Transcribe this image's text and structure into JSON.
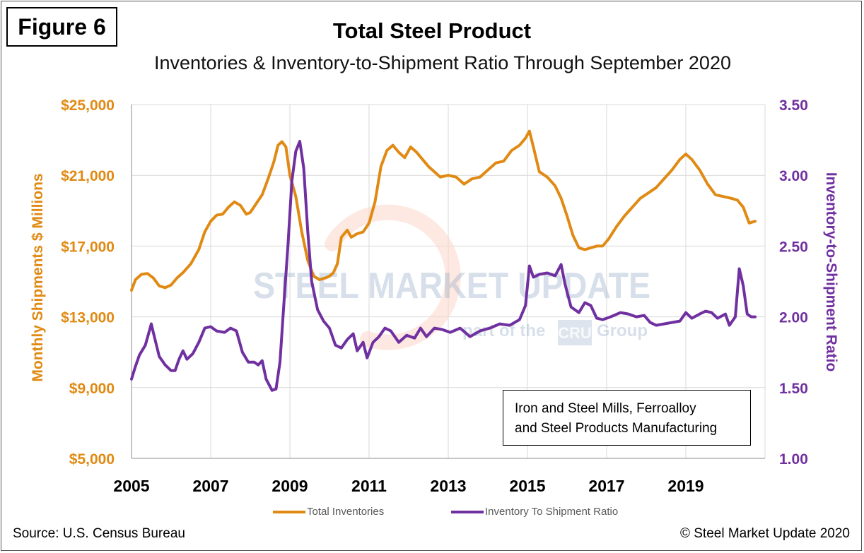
{
  "figure_label": "Figure 6",
  "source": "Source: U.S. Census Bureau",
  "copyright": "© Steel Market Update 2020",
  "annotation": {
    "line1": "Iron and Steel Mills, Ferroalloy",
    "line2": "and Steel Products Manufacturing"
  },
  "watermark": {
    "brand": "STEEL MARKET UPDATE",
    "tagline_prefix": "part of the",
    "tagline_cru": "CRU",
    "tagline_suffix": "Group"
  },
  "colors": {
    "inventories": "#e08a14",
    "ratio": "#7030a0",
    "grid": "#d9d9d9"
  },
  "chart_data": {
    "type": "line",
    "title": "Total Steel Product",
    "subtitle": "Inventories & Inventory-to-Shipment Ratio Through September 2020",
    "ylabel_left": "Monthly Shipments $ Millions",
    "ylabel_right": "Inventory-to-Shipment Ratio",
    "ylim_left": [
      5000,
      25000
    ],
    "ylim_right": [
      1.0,
      3.5
    ],
    "xlim": [
      2005,
      2021
    ],
    "x_ticks": [
      2005,
      2007,
      2009,
      2011,
      2013,
      2015,
      2017,
      2019
    ],
    "x_tick_labels": [
      "2005",
      "2007",
      "2009",
      "2011",
      "2013",
      "2015",
      "2017",
      "2019"
    ],
    "y_left_tick_values": [
      5000,
      9000,
      13000,
      17000,
      21000,
      25000
    ],
    "y_left_tick_labels": [
      "$5,000",
      "$9,000",
      "$13,000",
      "$17,000",
      "$21,000",
      "$25,000"
    ],
    "y_right_tick_values": [
      1.0,
      1.5,
      2.0,
      2.5,
      3.0,
      3.5
    ],
    "y_right_tick_labels": [
      "1.00",
      "1.50",
      "2.00",
      "2.50",
      "3.00",
      "3.50"
    ],
    "legend_position": "bottom",
    "grid": true,
    "series": [
      {
        "name": "Total Inventories",
        "axis": "left",
        "points": [
          [
            2005.0,
            14500
          ],
          [
            2005.1,
            15100
          ],
          [
            2005.25,
            15400
          ],
          [
            2005.4,
            15450
          ],
          [
            2005.55,
            15200
          ],
          [
            2005.7,
            14750
          ],
          [
            2005.85,
            14650
          ],
          [
            2006.0,
            14800
          ],
          [
            2006.15,
            15200
          ],
          [
            2006.3,
            15500
          ],
          [
            2006.5,
            16000
          ],
          [
            2006.7,
            16800
          ],
          [
            2006.85,
            17800
          ],
          [
            2007.0,
            18400
          ],
          [
            2007.15,
            18750
          ],
          [
            2007.3,
            18800
          ],
          [
            2007.45,
            19200
          ],
          [
            2007.6,
            19500
          ],
          [
            2007.75,
            19300
          ],
          [
            2007.9,
            18800
          ],
          [
            2008.0,
            18900
          ],
          [
            2008.15,
            19400
          ],
          [
            2008.3,
            19900
          ],
          [
            2008.45,
            20800
          ],
          [
            2008.6,
            21800
          ],
          [
            2008.7,
            22700
          ],
          [
            2008.8,
            22900
          ],
          [
            2008.9,
            22600
          ],
          [
            2009.0,
            21000
          ],
          [
            2009.15,
            19800
          ],
          [
            2009.3,
            17800
          ],
          [
            2009.45,
            16200
          ],
          [
            2009.6,
            15300
          ],
          [
            2009.75,
            15100
          ],
          [
            2009.9,
            15200
          ],
          [
            2010.0,
            15300
          ],
          [
            2010.1,
            15500
          ],
          [
            2010.2,
            16000
          ],
          [
            2010.3,
            17500
          ],
          [
            2010.45,
            17900
          ],
          [
            2010.55,
            17500
          ],
          [
            2010.7,
            17700
          ],
          [
            2010.85,
            17800
          ],
          [
            2011.0,
            18300
          ],
          [
            2011.15,
            19500
          ],
          [
            2011.3,
            21500
          ],
          [
            2011.45,
            22400
          ],
          [
            2011.6,
            22700
          ],
          [
            2011.75,
            22300
          ],
          [
            2011.9,
            22000
          ],
          [
            2012.05,
            22600
          ],
          [
            2012.2,
            22300
          ],
          [
            2012.35,
            21900
          ],
          [
            2012.5,
            21500
          ],
          [
            2012.65,
            21200
          ],
          [
            2012.8,
            20900
          ],
          [
            2013.0,
            21000
          ],
          [
            2013.2,
            20900
          ],
          [
            2013.4,
            20500
          ],
          [
            2013.6,
            20800
          ],
          [
            2013.8,
            20900
          ],
          [
            2014.0,
            21300
          ],
          [
            2014.2,
            21700
          ],
          [
            2014.4,
            21800
          ],
          [
            2014.6,
            22400
          ],
          [
            2014.8,
            22700
          ],
          [
            2014.95,
            23100
          ],
          [
            2015.05,
            23500
          ],
          [
            2015.15,
            22600
          ],
          [
            2015.3,
            21200
          ],
          [
            2015.5,
            20900
          ],
          [
            2015.7,
            20400
          ],
          [
            2015.85,
            19700
          ],
          [
            2016.0,
            18700
          ],
          [
            2016.15,
            17600
          ],
          [
            2016.3,
            16900
          ],
          [
            2016.45,
            16800
          ],
          [
            2016.6,
            16900
          ],
          [
            2016.75,
            17000
          ],
          [
            2016.9,
            17000
          ],
          [
            2017.05,
            17400
          ],
          [
            2017.25,
            18100
          ],
          [
            2017.45,
            18700
          ],
          [
            2017.65,
            19200
          ],
          [
            2017.85,
            19700
          ],
          [
            2018.05,
            20000
          ],
          [
            2018.25,
            20300
          ],
          [
            2018.45,
            20800
          ],
          [
            2018.65,
            21300
          ],
          [
            2018.85,
            21900
          ],
          [
            2019.0,
            22200
          ],
          [
            2019.15,
            21900
          ],
          [
            2019.35,
            21300
          ],
          [
            2019.55,
            20500
          ],
          [
            2019.75,
            19900
          ],
          [
            2019.95,
            19800
          ],
          [
            2020.15,
            19700
          ],
          [
            2020.3,
            19600
          ],
          [
            2020.45,
            19200
          ],
          [
            2020.6,
            18300
          ],
          [
            2020.75,
            18400
          ]
        ]
      },
      {
        "name": "Inventory To Shipment Ratio",
        "axis": "right",
        "points": [
          [
            2005.0,
            1.56
          ],
          [
            2005.1,
            1.65
          ],
          [
            2005.2,
            1.73
          ],
          [
            2005.35,
            1.8
          ],
          [
            2005.5,
            1.95
          ],
          [
            2005.55,
            1.89
          ],
          [
            2005.7,
            1.72
          ],
          [
            2005.85,
            1.66
          ],
          [
            2006.0,
            1.62
          ],
          [
            2006.1,
            1.62
          ],
          [
            2006.2,
            1.7
          ],
          [
            2006.3,
            1.76
          ],
          [
            2006.4,
            1.7
          ],
          [
            2006.55,
            1.74
          ],
          [
            2006.7,
            1.82
          ],
          [
            2006.85,
            1.92
          ],
          [
            2007.0,
            1.93
          ],
          [
            2007.15,
            1.9
          ],
          [
            2007.35,
            1.89
          ],
          [
            2007.5,
            1.92
          ],
          [
            2007.65,
            1.9
          ],
          [
            2007.8,
            1.75
          ],
          [
            2007.95,
            1.68
          ],
          [
            2008.1,
            1.68
          ],
          [
            2008.2,
            1.66
          ],
          [
            2008.3,
            1.69
          ],
          [
            2008.4,
            1.56
          ],
          [
            2008.55,
            1.48
          ],
          [
            2008.65,
            1.49
          ],
          [
            2008.75,
            1.68
          ],
          [
            2008.85,
            2.1
          ],
          [
            2008.95,
            2.5
          ],
          [
            2009.05,
            2.96
          ],
          [
            2009.15,
            3.17
          ],
          [
            2009.25,
            3.24
          ],
          [
            2009.35,
            3.05
          ],
          [
            2009.45,
            2.61
          ],
          [
            2009.55,
            2.25
          ],
          [
            2009.7,
            2.05
          ],
          [
            2009.85,
            1.97
          ],
          [
            2010.0,
            1.92
          ],
          [
            2010.15,
            1.8
          ],
          [
            2010.3,
            1.78
          ],
          [
            2010.45,
            1.84
          ],
          [
            2010.6,
            1.88
          ],
          [
            2010.7,
            1.76
          ],
          [
            2010.85,
            1.82
          ],
          [
            2010.95,
            1.71
          ],
          [
            2011.1,
            1.82
          ],
          [
            2011.25,
            1.86
          ],
          [
            2011.4,
            1.92
          ],
          [
            2011.55,
            1.9
          ],
          [
            2011.75,
            1.82
          ],
          [
            2011.95,
            1.87
          ],
          [
            2012.15,
            1.85
          ],
          [
            2012.3,
            1.92
          ],
          [
            2012.45,
            1.86
          ],
          [
            2012.65,
            1.92
          ],
          [
            2012.85,
            1.91
          ],
          [
            2013.05,
            1.89
          ],
          [
            2013.3,
            1.92
          ],
          [
            2013.55,
            1.86
          ],
          [
            2013.8,
            1.9
          ],
          [
            2014.05,
            1.92
          ],
          [
            2014.3,
            1.95
          ],
          [
            2014.55,
            1.94
          ],
          [
            2014.8,
            1.98
          ],
          [
            2014.95,
            2.08
          ],
          [
            2015.05,
            2.36
          ],
          [
            2015.15,
            2.28
          ],
          [
            2015.3,
            2.3
          ],
          [
            2015.5,
            2.31
          ],
          [
            2015.7,
            2.29
          ],
          [
            2015.85,
            2.37
          ],
          [
            2015.95,
            2.23
          ],
          [
            2016.1,
            2.07
          ],
          [
            2016.3,
            2.03
          ],
          [
            2016.45,
            2.1
          ],
          [
            2016.6,
            2.08
          ],
          [
            2016.75,
            1.99
          ],
          [
            2016.9,
            1.98
          ],
          [
            2017.1,
            2.0
          ],
          [
            2017.35,
            2.03
          ],
          [
            2017.55,
            2.02
          ],
          [
            2017.75,
            2.0
          ],
          [
            2017.95,
            2.01
          ],
          [
            2018.1,
            1.96
          ],
          [
            2018.25,
            1.94
          ],
          [
            2018.45,
            1.95
          ],
          [
            2018.65,
            1.96
          ],
          [
            2018.85,
            1.97
          ],
          [
            2019.0,
            2.03
          ],
          [
            2019.15,
            1.99
          ],
          [
            2019.35,
            2.02
          ],
          [
            2019.5,
            2.04
          ],
          [
            2019.65,
            2.03
          ],
          [
            2019.8,
            1.99
          ],
          [
            2020.0,
            2.02
          ],
          [
            2020.1,
            1.94
          ],
          [
            2020.25,
            2.0
          ],
          [
            2020.35,
            2.34
          ],
          [
            2020.45,
            2.22
          ],
          [
            2020.55,
            2.02
          ],
          [
            2020.65,
            2.0
          ],
          [
            2020.75,
            2.0
          ]
        ]
      }
    ]
  }
}
